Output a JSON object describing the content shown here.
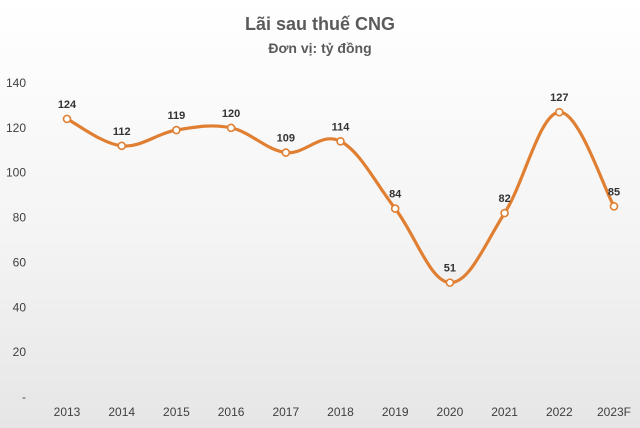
{
  "chart_data": {
    "type": "line",
    "title": "Lãi sau thuế CNG",
    "subtitle": "Đơn vị: tỷ đồng",
    "categories": [
      "2013",
      "2014",
      "2015",
      "2016",
      "2017",
      "2018",
      "2019",
      "2020",
      "2021",
      "2022",
      "2023F"
    ],
    "series": [
      {
        "values": [
          124,
          112,
          119,
          120,
          109,
          114,
          84,
          51,
          82,
          127,
          85
        ]
      }
    ],
    "y_tick_labels": [
      "-",
      "20",
      "40",
      "60",
      "80",
      "100",
      "120",
      "140"
    ],
    "ylim": [
      0,
      140
    ],
    "y_step": 20,
    "grid": false,
    "legend": "none",
    "line_color": "#e07f32",
    "marker_fill": "#ffffff"
  }
}
